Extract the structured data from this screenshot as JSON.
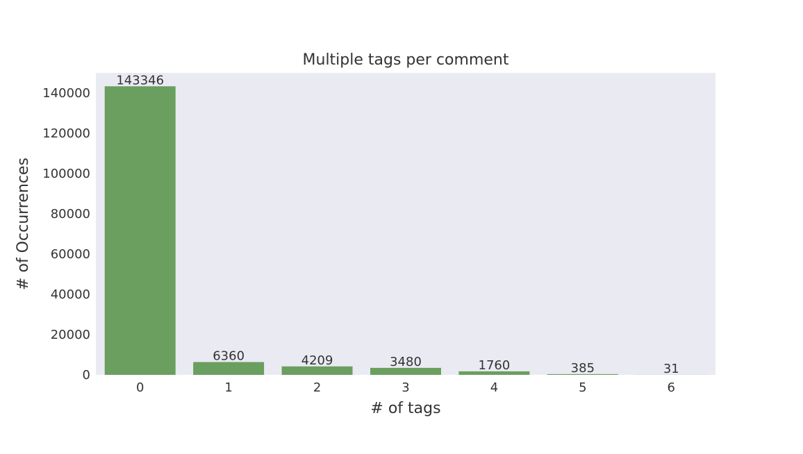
{
  "chart_data": {
    "type": "bar",
    "title": "Multiple tags per comment",
    "xlabel": "# of tags",
    "ylabel": "# of Occurrences",
    "categories": [
      "0",
      "1",
      "2",
      "3",
      "4",
      "5",
      "6"
    ],
    "values": [
      143346,
      6360,
      4209,
      3480,
      1760,
      385,
      31
    ],
    "value_labels": [
      "143346",
      "6360",
      "4209",
      "3480",
      "1760",
      "385",
      "31"
    ],
    "yticks": [
      0,
      20000,
      40000,
      60000,
      80000,
      100000,
      120000,
      140000
    ],
    "ytick_labels": [
      "0",
      "20000",
      "40000",
      "60000",
      "80000",
      "100000",
      "120000",
      "140000"
    ],
    "ylim": [
      0,
      150000
    ],
    "grid": false,
    "colors": {
      "bar": "#6a9f5f",
      "plot_background": "#eaeaf2",
      "text": "#333333"
    }
  }
}
